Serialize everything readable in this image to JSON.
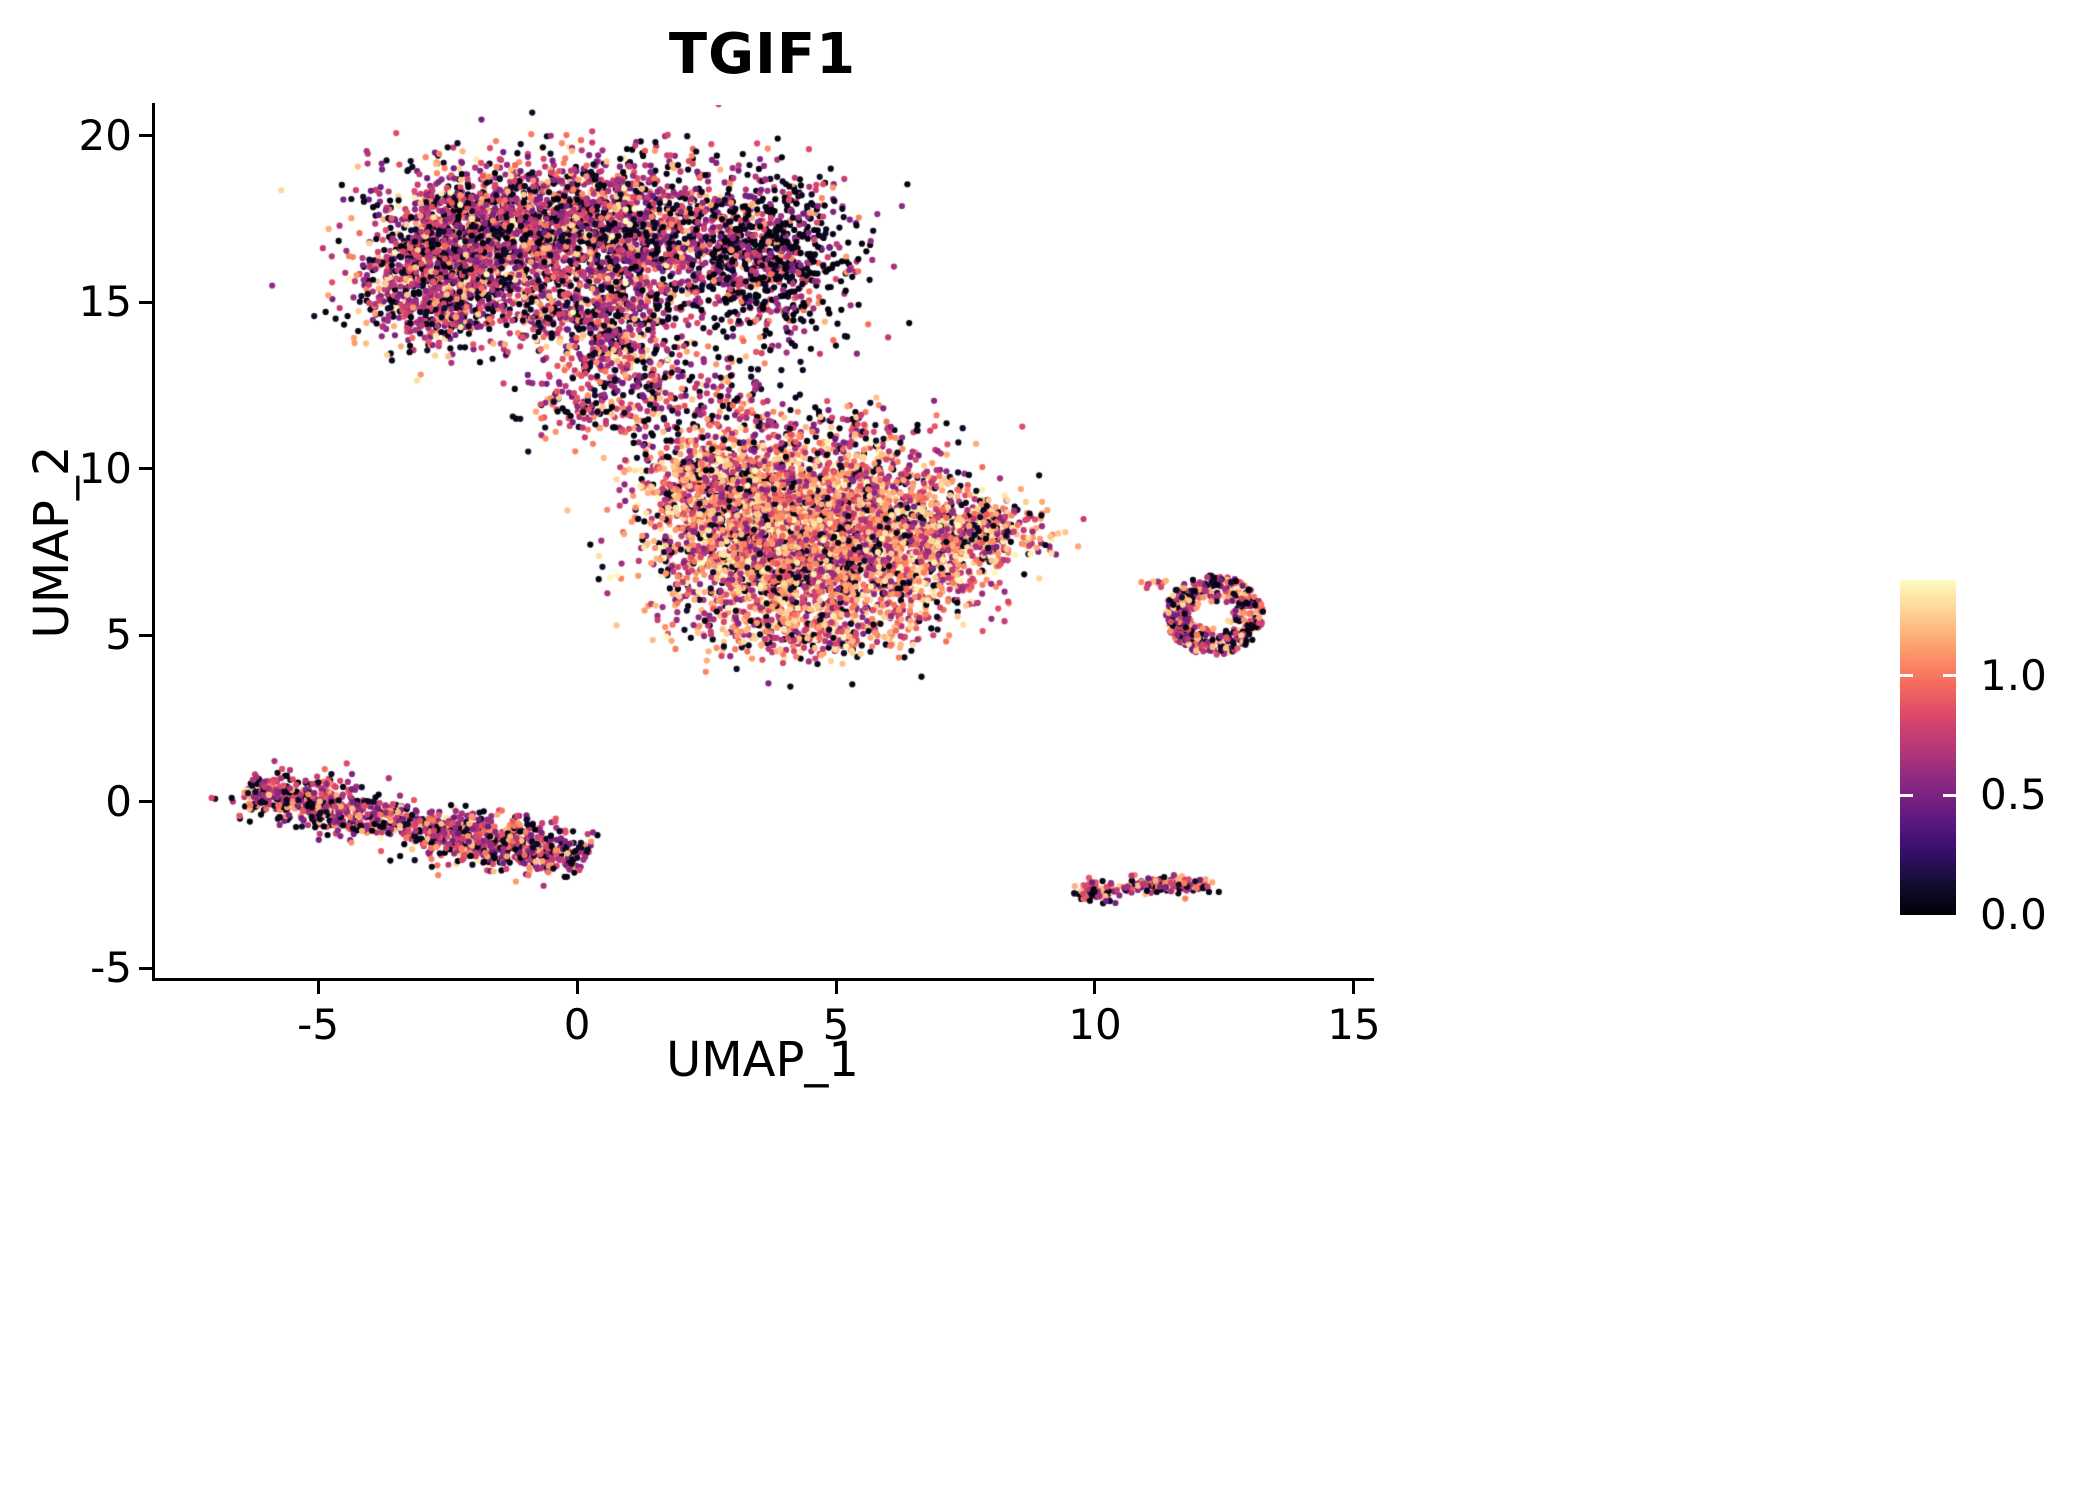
{
  "title": "TGIF1",
  "axes": {
    "x": {
      "label": "UMAP_1",
      "ticks": [
        {
          "label": "-5",
          "value": -5
        },
        {
          "label": "0",
          "value": 0
        },
        {
          "label": "5",
          "value": 5
        },
        {
          "label": "10",
          "value": 10
        },
        {
          "label": "15",
          "value": 15
        }
      ]
    },
    "y": {
      "label": "UMAP_2",
      "ticks": [
        {
          "label": "20",
          "value": 20
        },
        {
          "label": "15",
          "value": 15
        },
        {
          "label": "10",
          "value": 10
        },
        {
          "label": "5",
          "value": 5
        },
        {
          "label": "0",
          "value": 0
        },
        {
          "label": "-5",
          "value": -5
        }
      ]
    }
  },
  "colorbar": {
    "vmin": 0.0,
    "vmax": 1.4,
    "ticks": [
      {
        "label": "1.0",
        "value": 1.0
      },
      {
        "label": "0.5",
        "value": 0.5
      },
      {
        "label": "0.0",
        "value": 0.0
      }
    ],
    "colormap": [
      [
        0.0,
        "#000004"
      ],
      [
        0.1,
        "#140e36"
      ],
      [
        0.2,
        "#3b0f70"
      ],
      [
        0.3,
        "#641a80"
      ],
      [
        0.4,
        "#8c2981"
      ],
      [
        0.5,
        "#b73779"
      ],
      [
        0.6,
        "#de4968"
      ],
      [
        0.7,
        "#f7705c"
      ],
      [
        0.8,
        "#fe9f6d"
      ],
      [
        0.9,
        "#fecf92"
      ],
      [
        1.0,
        "#fcfdbf"
      ]
    ]
  },
  "chart_data": {
    "type": "scatter",
    "title": "TGIF1",
    "xlabel": "UMAP_1",
    "ylabel": "UMAP_2",
    "xlim": [
      -8.15,
      15.31
    ],
    "ylim": [
      -5.3,
      20.92
    ],
    "grid": false,
    "legend": "colorbar-right",
    "color_variable": "TGIF1 expression (0.0 - 1.4)",
    "point_radius_px": 3.1,
    "seed": 42,
    "clusters": [
      {
        "name": "top-left-main",
        "shape": "blob",
        "count": 4300,
        "blobs": [
          [
            -2.2,
            16.8,
            1.0,
            1.2,
            0.3
          ],
          [
            -0.3,
            17.4,
            1.1,
            1.0,
            0.24
          ],
          [
            1.6,
            16.8,
            1.1,
            1.2,
            0.2
          ],
          [
            -2.8,
            15.2,
            0.7,
            0.8,
            0.12
          ],
          [
            0.2,
            14.6,
            0.9,
            0.7,
            0.09
          ],
          [
            0.9,
            13.2,
            0.7,
            0.8,
            0.05
          ]
        ],
        "mix": [
          [
            0.0,
            0.12,
            0.3
          ],
          [
            0.45,
            0.9,
            0.5
          ],
          [
            0.95,
            1.25,
            0.15
          ],
          [
            1.25,
            1.4,
            0.05
          ]
        ]
      },
      {
        "name": "top-right-lobe",
        "shape": "blob",
        "count": 800,
        "blobs": [
          [
            3.7,
            16.4,
            0.85,
            1.25,
            1.0
          ]
        ],
        "mix": [
          [
            0.0,
            0.1,
            0.55
          ],
          [
            0.45,
            0.85,
            0.38
          ],
          [
            0.95,
            1.2,
            0.07
          ]
        ]
      },
      {
        "name": "neck",
        "shape": "blob",
        "count": 300,
        "blobs": [
          [
            1.2,
            12.1,
            0.9,
            0.7,
            0.45
          ],
          [
            2.9,
            12.3,
            0.7,
            0.6,
            0.3
          ],
          [
            0.1,
            11.9,
            0.5,
            0.5,
            0.25
          ]
        ],
        "mix": [
          [
            0.0,
            0.12,
            0.32
          ],
          [
            0.45,
            0.9,
            0.5
          ],
          [
            0.95,
            1.25,
            0.18
          ]
        ]
      },
      {
        "name": "central-main",
        "shape": "blob",
        "count": 5400,
        "blobs": [
          [
            3.3,
            8.7,
            1.0,
            1.1,
            0.24
          ],
          [
            5.2,
            8.9,
            1.1,
            1.0,
            0.22
          ],
          [
            4.2,
            6.8,
            1.2,
            1.0,
            0.22
          ],
          [
            6.4,
            7.6,
            1.0,
            0.9,
            0.15
          ],
          [
            2.5,
            9.9,
            0.7,
            0.6,
            0.06
          ],
          [
            7.7,
            8.1,
            0.7,
            0.45,
            0.06
          ],
          [
            4.8,
            5.2,
            1.0,
            0.5,
            0.05
          ]
        ],
        "mix": [
          [
            0.0,
            0.12,
            0.15
          ],
          [
            0.5,
            0.9,
            0.33
          ],
          [
            0.95,
            1.3,
            0.42
          ],
          [
            1.3,
            1.4,
            0.1
          ]
        ]
      },
      {
        "name": "central-top-halo",
        "shape": "blob",
        "count": 130,
        "blobs": [
          [
            4.8,
            11.2,
            1.4,
            0.45,
            1.0
          ]
        ],
        "mix": [
          [
            0.0,
            0.12,
            0.35
          ],
          [
            0.45,
            0.9,
            0.45
          ],
          [
            0.95,
            1.25,
            0.2
          ]
        ]
      },
      {
        "name": "lower-left-stripe",
        "shape": "stripe",
        "count": 950,
        "x1": -6.4,
        "y1": 0.35,
        "x2": 0.15,
        "y2": -1.8,
        "sigma": 0.33,
        "mix": [
          [
            0.0,
            0.12,
            0.28
          ],
          [
            0.45,
            0.9,
            0.52
          ],
          [
            0.95,
            1.25,
            0.16
          ],
          [
            1.25,
            1.4,
            0.04
          ]
        ]
      },
      {
        "name": "stripe-bulge-right",
        "shape": "blob",
        "count": 220,
        "blobs": [
          [
            -1.7,
            -1.15,
            0.75,
            0.4,
            1.0
          ]
        ],
        "mix": [
          [
            0.0,
            0.12,
            0.28
          ],
          [
            0.45,
            0.9,
            0.52
          ],
          [
            0.95,
            1.25,
            0.2
          ]
        ]
      },
      {
        "name": "stripe-bulge-left",
        "shape": "blob",
        "count": 160,
        "blobs": [
          [
            -5.2,
            0.05,
            0.6,
            0.38,
            1.0
          ]
        ],
        "mix": [
          [
            0.0,
            0.12,
            0.28
          ],
          [
            0.45,
            0.9,
            0.52
          ],
          [
            0.95,
            1.25,
            0.2
          ]
        ]
      },
      {
        "name": "right-ring",
        "shape": "ring",
        "count": 460,
        "cx": 12.3,
        "cy": 5.6,
        "rx": 0.95,
        "ry": 1.2,
        "hole": 0.3,
        "mix": [
          [
            0.0,
            0.12,
            0.26
          ],
          [
            0.45,
            0.9,
            0.44
          ],
          [
            0.95,
            1.3,
            0.3
          ]
        ]
      },
      {
        "name": "right-ring-satellite",
        "shape": "blob",
        "count": 10,
        "blobs": [
          [
            11.15,
            6.55,
            0.12,
            0.08,
            1.0
          ]
        ],
        "mix": [
          [
            0.0,
            0.12,
            0.3
          ],
          [
            0.45,
            0.9,
            0.4
          ],
          [
            0.95,
            1.3,
            0.3
          ]
        ]
      },
      {
        "name": "bottom-small-left",
        "shape": "blob",
        "count": 100,
        "blobs": [
          [
            10.0,
            -2.72,
            0.22,
            0.15,
            1.0
          ]
        ],
        "mix": [
          [
            0.0,
            0.12,
            0.3
          ],
          [
            0.45,
            0.9,
            0.4
          ],
          [
            0.95,
            1.3,
            0.3
          ]
        ]
      },
      {
        "name": "bottom-small-mid",
        "shape": "blob",
        "count": 6,
        "blobs": [
          [
            10.65,
            -2.6,
            0.06,
            0.05,
            1.0
          ]
        ],
        "mix": [
          [
            0.0,
            0.12,
            0.6
          ],
          [
            0.45,
            0.9,
            0.4
          ]
        ]
      },
      {
        "name": "bottom-small-right",
        "shape": "blob",
        "count": 130,
        "blobs": [
          [
            11.5,
            -2.52,
            0.42,
            0.13,
            1.0
          ]
        ],
        "mix": [
          [
            0.0,
            0.12,
            0.3
          ],
          [
            0.45,
            0.9,
            0.4
          ],
          [
            0.95,
            1.3,
            0.3
          ]
        ]
      },
      {
        "name": "stray-dot",
        "shape": "points",
        "count": 1,
        "points": [
          [
            6.65,
            3.75
          ]
        ],
        "mix": [
          [
            0.0,
            0.05,
            1.0
          ]
        ]
      }
    ]
  }
}
